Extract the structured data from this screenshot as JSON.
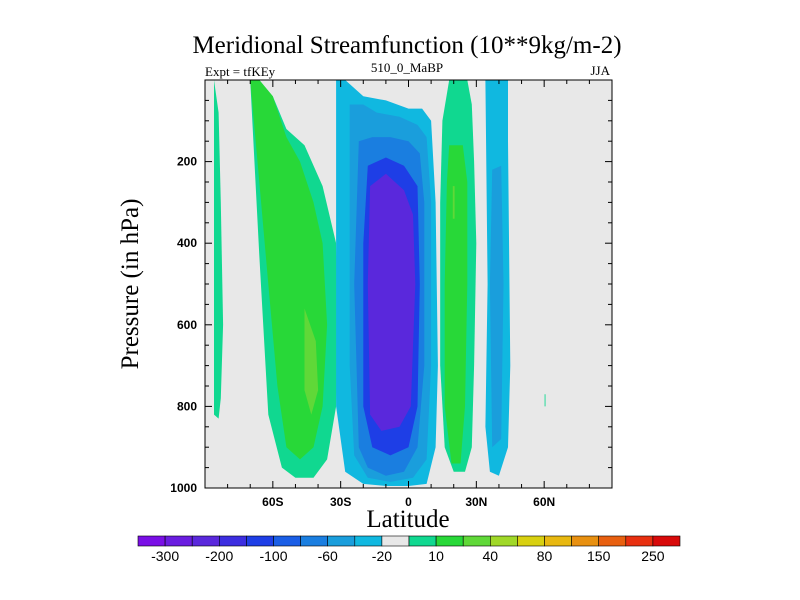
{
  "chart_data": {
    "type": "heatmap",
    "title": "Meridional Streamfunction (10**9kg/m-2)",
    "left_label": "Expt = tfKEy",
    "center_label": "510_0_MaBP",
    "right_label": "JJA",
    "xlabel": "Latitude",
    "ylabel": "Pressure (in hPa)",
    "xlim": [
      -90,
      90
    ],
    "ylim": [
      1000,
      0
    ],
    "x_ticks": [
      {
        "value": -60,
        "label": "60S"
      },
      {
        "value": -30,
        "label": "30S"
      },
      {
        "value": 0,
        "label": "0"
      },
      {
        "value": 30,
        "label": "30N"
      },
      {
        "value": 60,
        "label": "60N"
      }
    ],
    "y_ticks": [
      {
        "value": 200,
        "label": "200"
      },
      {
        "value": 400,
        "label": "400"
      },
      {
        "value": 600,
        "label": "600"
      },
      {
        "value": 800,
        "label": "800"
      },
      {
        "value": 1000,
        "label": "1000"
      }
    ],
    "background_color": "#e8e8e8",
    "colorbar": {
      "colors": [
        "#7a0fe6",
        "#6a1de0",
        "#5a28dc",
        "#3c2ee0",
        "#1e3ee6",
        "#1a5ee6",
        "#1a7ee0",
        "#1a9edc",
        "#10b8e0",
        "#e8e8e8",
        "#10d890",
        "#28d838",
        "#60d838",
        "#a0d828",
        "#d8d010",
        "#e8b810",
        "#e89010",
        "#e86010",
        "#e83010",
        "#d80a0a"
      ],
      "tick_labels": [
        "-300",
        "-200",
        "-100",
        "-60",
        "-20",
        "10",
        "40",
        "80",
        "150",
        "250"
      ]
    },
    "contours": [
      {
        "level": "+10",
        "color": "#10d890",
        "lon": [
          -86,
          -84,
          -83,
          -82,
          -83,
          -84,
          -86,
          -86
        ],
        "p": [
          0,
          80,
          300,
          600,
          780,
          830,
          820,
          0
        ]
      },
      {
        "level": "+10",
        "color": "#10d890",
        "lon": [
          -70,
          -66,
          -60,
          -54,
          -46,
          -38,
          -32,
          -31,
          -32,
          -36,
          -42,
          -50,
          -56,
          -62,
          -66,
          -70
        ],
        "p": [
          0,
          0,
          40,
          120,
          160,
          260,
          400,
          600,
          800,
          930,
          975,
          975,
          950,
          820,
          430,
          0
        ]
      },
      {
        "level": "+40",
        "color": "#28d838",
        "lon": [
          -70,
          -66,
          -60,
          -54,
          -48,
          -42,
          -38,
          -36,
          -38,
          -42,
          -48,
          -54,
          -58,
          -62,
          -66,
          -70
        ],
        "p": [
          0,
          0,
          40,
          140,
          200,
          300,
          400,
          600,
          800,
          900,
          930,
          900,
          750,
          500,
          250,
          0
        ]
      },
      {
        "level": "+80",
        "color": "#60d838",
        "lon": [
          -46,
          -41,
          -40,
          -43,
          -46,
          -46
        ],
        "p": [
          560,
          640,
          760,
          820,
          760,
          560
        ]
      },
      {
        "level": "-10",
        "color": "#10b8e0",
        "lon": [
          -32,
          -28,
          -20,
          -10,
          0,
          6,
          10,
          12,
          13,
          12,
          8,
          0,
          -10,
          -20,
          -28,
          -32,
          -32
        ],
        "p": [
          0,
          0,
          40,
          50,
          70,
          70,
          100,
          300,
          700,
          900,
          990,
          995,
          995,
          990,
          960,
          800,
          0
        ]
      },
      {
        "level": "-20",
        "color": "#1a9edc",
        "lon": [
          -26,
          -20,
          -14,
          -4,
          4,
          8,
          10,
          10,
          8,
          2,
          -8,
          -18,
          -24,
          -26,
          -26
        ],
        "p": [
          60,
          60,
          80,
          90,
          110,
          140,
          300,
          700,
          930,
          975,
          985,
          975,
          920,
          700,
          60
        ]
      },
      {
        "level": "-60",
        "color": "#1a7ee0",
        "lon": [
          -22,
          -16,
          -8,
          0,
          5,
          7,
          7,
          4,
          -2,
          -10,
          -18,
          -22,
          -24,
          -22
        ],
        "p": [
          150,
          140,
          140,
          150,
          180,
          300,
          700,
          900,
          960,
          970,
          950,
          900,
          500,
          150
        ]
      },
      {
        "level": "-100",
        "color": "#1e3ee6",
        "lon": [
          -18,
          -10,
          -2,
          4,
          5,
          4,
          0,
          -8,
          -16,
          -20,
          -20,
          -18
        ],
        "p": [
          210,
          190,
          210,
          260,
          500,
          800,
          900,
          920,
          900,
          800,
          400,
          210
        ]
      },
      {
        "level": "-200",
        "color": "#5a28dc",
        "lon": [
          -17,
          -10,
          -2,
          2,
          3,
          1,
          -4,
          -12,
          -17,
          -18,
          -17
        ],
        "p": [
          260,
          230,
          270,
          330,
          500,
          800,
          850,
          860,
          820,
          500,
          260
        ]
      },
      {
        "level": "+10",
        "color": "#10d890",
        "lon": [
          18,
          26,
          28,
          29,
          30,
          29,
          28,
          25,
          20,
          16,
          14,
          14,
          15,
          18
        ],
        "p": [
          0,
          0,
          60,
          200,
          400,
          700,
          900,
          960,
          960,
          900,
          700,
          300,
          100,
          0
        ]
      },
      {
        "level": "+40",
        "color": "#28d838",
        "lon": [
          18,
          24,
          26,
          26,
          25,
          23,
          19,
          16,
          16,
          17,
          18
        ],
        "p": [
          160,
          160,
          250,
          500,
          800,
          940,
          940,
          800,
          500,
          250,
          160
        ]
      },
      {
        "level": "+80",
        "color": "#60d838",
        "lon": [
          19.6,
          20.4,
          20.4,
          19.6
        ],
        "p": [
          260,
          260,
          340,
          340
        ]
      },
      {
        "level": "-10",
        "color": "#10b8e0",
        "lon": [
          34,
          44,
          44,
          45,
          44,
          40,
          36,
          34,
          35,
          34
        ],
        "p": [
          0,
          0,
          150,
          700,
          900,
          970,
          960,
          850,
          500,
          0
        ]
      },
      {
        "level": "-20",
        "color": "#1a9edc",
        "lon": [
          37,
          41,
          42,
          41,
          37,
          36,
          37
        ],
        "p": [
          220,
          210,
          500,
          880,
          900,
          500,
          220
        ]
      },
      {
        "level": "+10",
        "color": "#10d890",
        "lon": [
          60.2,
          60.6,
          60.6,
          60.2
        ],
        "p": [
          770,
          770,
          800,
          800
        ]
      }
    ]
  }
}
